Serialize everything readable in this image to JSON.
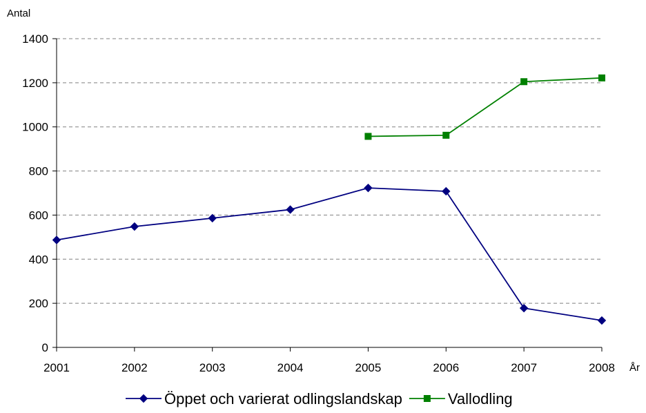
{
  "chart_data": {
    "type": "line",
    "title": "",
    "ylabel": "Antal",
    "xlabel": "År",
    "categories": [
      "2001",
      "2002",
      "2003",
      "2004",
      "2005",
      "2006",
      "2007",
      "2008"
    ],
    "ylim": [
      0,
      1400
    ],
    "yticks": [
      0,
      200,
      400,
      600,
      800,
      1000,
      1200,
      1400
    ],
    "grid": "horizontal dashed",
    "legend_position": "bottom",
    "series": [
      {
        "name": "Öppet och varierat odlingslandskap",
        "color": "#000080",
        "marker": "diamond",
        "values": [
          487,
          548,
          586,
          625,
          723,
          708,
          178,
          122
        ]
      },
      {
        "name": "Vallodling",
        "color": "#008000",
        "marker": "square",
        "values": [
          null,
          null,
          null,
          null,
          957,
          962,
          1205,
          1222
        ]
      }
    ]
  }
}
